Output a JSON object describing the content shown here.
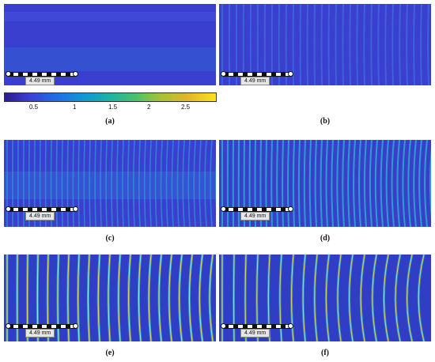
{
  "panels": [
    {
      "caption": "(a)",
      "scale_label": "4.49 mm"
    },
    {
      "caption": "(b)",
      "scale_label": "4.49 mm"
    },
    {
      "caption": "(c)",
      "scale_label": "4.49 mm"
    },
    {
      "caption": "(d)",
      "scale_label": "4.49 mm"
    },
    {
      "caption": "(e)",
      "scale_label": "4.49 mm"
    },
    {
      "caption": "(f)",
      "scale_label": "4.49 mm"
    }
  ],
  "colorbar": {
    "ticks": [
      "0.5",
      "1",
      "1.5",
      "2",
      "2.5"
    ]
  },
  "colors": {
    "background_blue": "#3a3fcf",
    "stripe_cyan": "#2bb0d8",
    "stripe_yellow": "#e8e23a"
  }
}
